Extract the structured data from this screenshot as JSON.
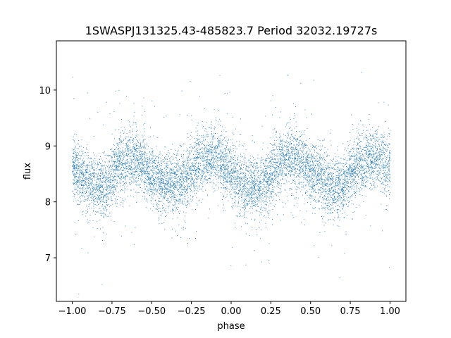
{
  "chart_data": {
    "type": "scatter",
    "title": "1SWASPJ131325.43-485823.7 Period 32032.19727s",
    "xlabel": "phase",
    "ylabel": "flux",
    "xlim": [
      -1.1,
      1.1
    ],
    "ylim": [
      6.22,
      10.88
    ],
    "x_ticks": [
      -1.0,
      -0.75,
      -0.5,
      -0.25,
      0.0,
      0.25,
      0.5,
      0.75,
      1.0
    ],
    "x_tick_labels": [
      "−1.00",
      "−0.75",
      "−0.50",
      "−0.25",
      "0.00",
      "0.25",
      "0.50",
      "0.75",
      "1.00"
    ],
    "y_ticks": [
      7,
      8,
      9,
      10
    ],
    "y_tick_labels": [
      "7",
      "8",
      "9",
      "10"
    ],
    "grid": false,
    "marker_color": "#1f77b4",
    "series": [
      {
        "description": "phase-folded light curve, mirrored across phase 0",
        "x": [
          -1.0,
          -0.9,
          -0.8,
          -0.7,
          -0.6,
          -0.5,
          -0.4,
          -0.3,
          -0.2,
          -0.1,
          0.0,
          0.1,
          0.2,
          0.3,
          0.4,
          0.5,
          0.6,
          0.7,
          0.8,
          0.9,
          1.0
        ],
        "y_center": [
          8.6,
          8.35,
          8.25,
          8.7,
          8.8,
          8.45,
          8.3,
          8.35,
          8.7,
          8.8,
          8.5,
          8.25,
          8.3,
          8.7,
          8.8,
          8.55,
          8.3,
          8.3,
          8.7,
          8.8,
          8.6
        ]
      }
    ]
  }
}
